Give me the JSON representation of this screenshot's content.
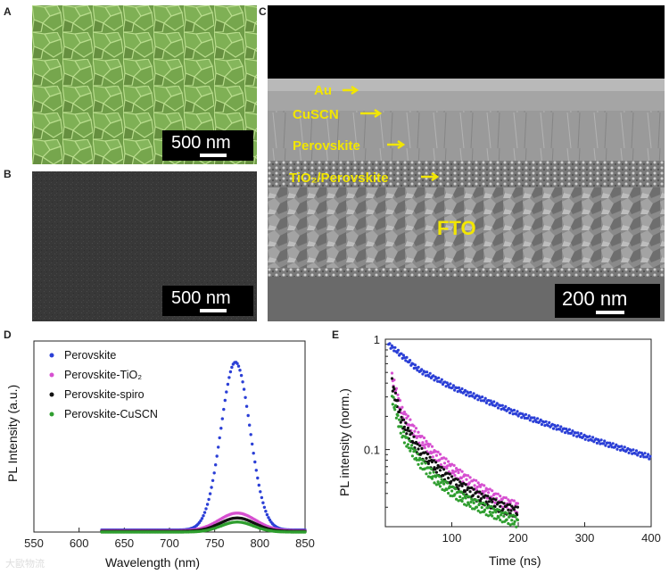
{
  "panels": {
    "a": {
      "label": "A",
      "scale_text": "500 nm"
    },
    "b": {
      "label": "B",
      "scale_text": "500 nm"
    },
    "c": {
      "label": "C",
      "scale_text": "200 nm",
      "layers": [
        "Au",
        "CuSCN",
        "Perovskite",
        "TiO₂/Perovskite",
        "FTO"
      ]
    },
    "d": {
      "label": "D",
      "xlabel": "Wavelength (nm)",
      "ylabel": "PL Intensity (a.u.)"
    },
    "e": {
      "label": "E",
      "xlabel": "Time (ns)",
      "ylabel": "PL intensity (norm.)"
    }
  },
  "colors": {
    "perovskite": "#2b3fd6",
    "tio2": "#d64fd0",
    "spiro": "#111111",
    "cuscn": "#2f9e2f",
    "layer_text": "#f2e600"
  },
  "watermark": "大歐物流",
  "chart_data": [
    {
      "type": "scatter",
      "panel": "D",
      "title": "",
      "xlabel": "Wavelength (nm)",
      "ylabel": "PL Intensity (a.u.)",
      "xlim": [
        550,
        850
      ],
      "x_ticks": [
        550,
        600,
        650,
        700,
        750,
        800,
        850
      ],
      "legend_position": "top-left",
      "series": [
        {
          "name": "Perovskite",
          "peak_x": 773,
          "peak_y": 1.0,
          "width": 16
        },
        {
          "name": "Perovskite-TiO₂",
          "peak_x": 775,
          "peak_y": 0.105,
          "width": 20
        },
        {
          "name": "Perovskite-spiro",
          "peak_x": 775,
          "peak_y": 0.08,
          "width": 19
        },
        {
          "name": "Perovskite-CuSCN",
          "peak_x": 775,
          "peak_y": 0.06,
          "width": 18
        }
      ]
    },
    {
      "type": "scatter",
      "panel": "E",
      "title": "",
      "xlabel": "Time (ns)",
      "ylabel": "PL intensity (norm.)",
      "xlim": [
        0,
        400
      ],
      "ylog": true,
      "ylim": [
        0.02,
        1
      ],
      "x_ticks": [
        100,
        200,
        300,
        400
      ],
      "y_ticks": [
        {
          "v": 1,
          "label": "1"
        },
        {
          "v": 0.1,
          "label": "0.1"
        }
      ],
      "series": [
        {
          "name": "Perovskite",
          "x": [
            5,
            50,
            100,
            150,
            200,
            250,
            300,
            350,
            400
          ],
          "y": [
            0.9,
            0.53,
            0.37,
            0.28,
            0.21,
            0.165,
            0.13,
            0.105,
            0.085
          ]
        },
        {
          "name": "Perovskite-TiO₂",
          "x": [
            10,
            25,
            50,
            75,
            100,
            125,
            150,
            175,
            200
          ],
          "y": [
            0.45,
            0.22,
            0.13,
            0.09,
            0.067,
            0.052,
            0.042,
            0.034,
            0.03
          ]
        },
        {
          "name": "Perovskite-spiro",
          "x": [
            10,
            25,
            50,
            75,
            100,
            125,
            150,
            175,
            200
          ],
          "y": [
            0.4,
            0.18,
            0.1,
            0.07,
            0.052,
            0.042,
            0.035,
            0.03,
            0.027
          ]
        },
        {
          "name": "Perovskite-CuSCN",
          "x": [
            10,
            25,
            50,
            75,
            100,
            125,
            150,
            175,
            200
          ],
          "y": [
            0.3,
            0.14,
            0.08,
            0.055,
            0.042,
            0.034,
            0.029,
            0.025,
            0.022
          ]
        }
      ]
    }
  ]
}
